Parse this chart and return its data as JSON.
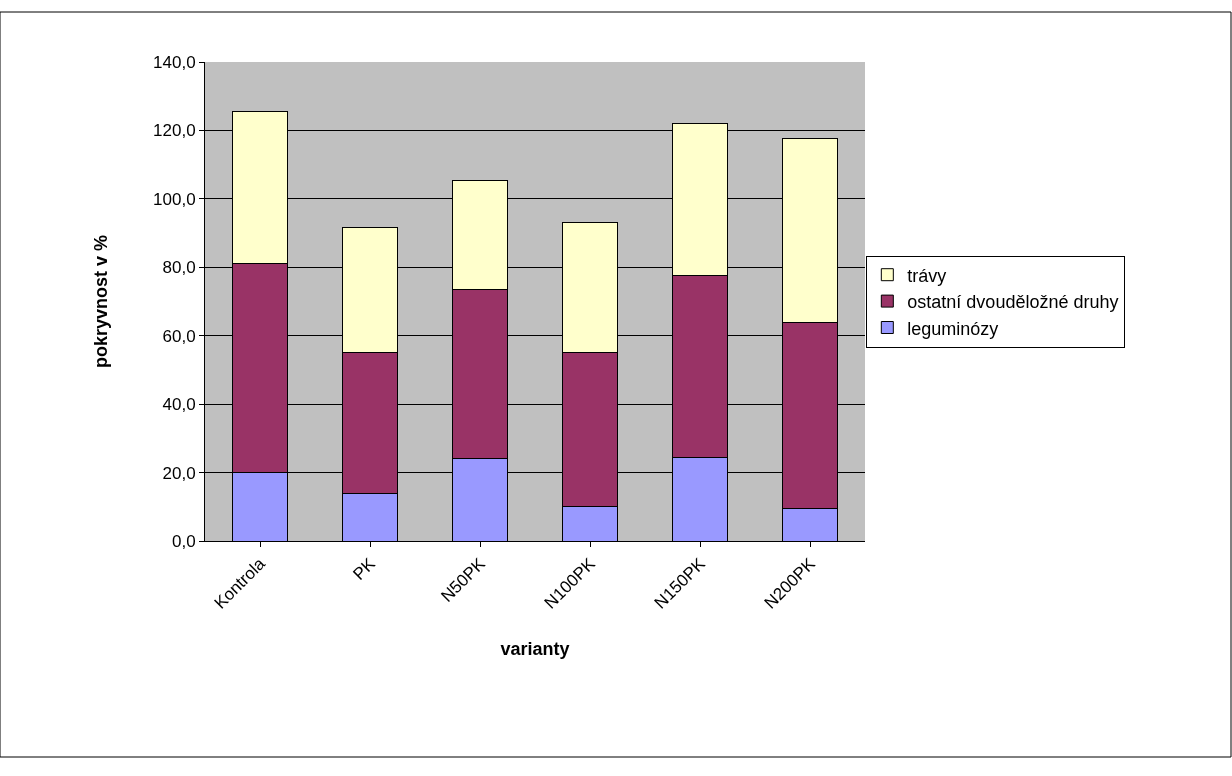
{
  "chart_data": {
    "type": "bar",
    "stacked": true,
    "xlabel": "varianty",
    "ylabel": "pokryvnost v %",
    "categories": [
      "Kontrola",
      "PK",
      "N50PK",
      "N100PK",
      "N150PK",
      "N200PK"
    ],
    "series": [
      {
        "name": "leguminózy",
        "color": "#9999ff",
        "values": [
          20,
          14,
          24,
          10,
          24.5,
          9.5
        ]
      },
      {
        "name": "ostatní dvouděložné druhy",
        "color": "#993366",
        "values": [
          61,
          41,
          49.5,
          45,
          53,
          54.5
        ]
      },
      {
        "name": "trávy",
        "color": "#ffffcc",
        "values": [
          44.5,
          36.5,
          32,
          38,
          44.5,
          53.5
        ]
      }
    ],
    "ylim": [
      0,
      140
    ],
    "yticks": [
      {
        "value": 0,
        "label": "0,0"
      },
      {
        "value": 20,
        "label": "20,0"
      },
      {
        "value": 40,
        "label": "40,0"
      },
      {
        "value": 60,
        "label": "60,0"
      },
      {
        "value": 80,
        "label": "80,0"
      },
      {
        "value": 100,
        "label": "100,0"
      },
      {
        "value": 120,
        "label": "120,0"
      },
      {
        "value": 140,
        "label": "140,0"
      }
    ],
    "grid": "y",
    "legend": "right"
  }
}
